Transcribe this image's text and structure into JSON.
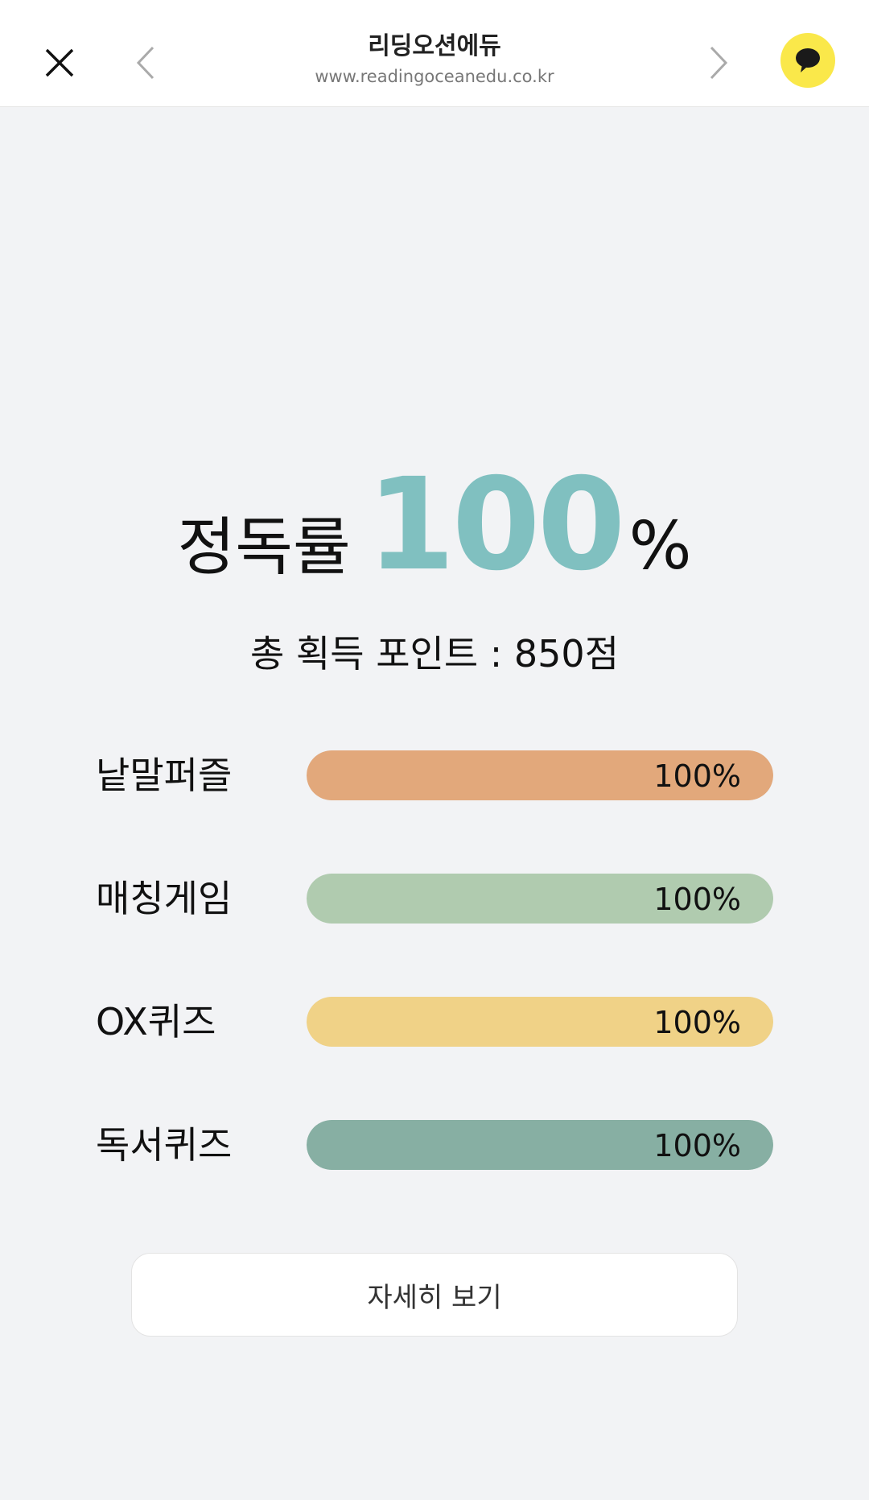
{
  "header": {
    "title": "리딩오션에듀",
    "url": "www.readingoceanedu.co.kr",
    "icons": [
      "close-icon",
      "chevron-left-icon",
      "chevron-right-icon",
      "kakao-chat-icon"
    ]
  },
  "summary": {
    "label": "정독률",
    "value": "100",
    "unit": "%",
    "points_text": "총 획득 포인트 : 850점",
    "accent_color": "#80c0c0"
  },
  "categories": [
    {
      "name": "낱말퍼즐",
      "value_text": "100%",
      "percent": 100,
      "color": "#e2a87b"
    },
    {
      "name": "매칭게임",
      "value_text": "100%",
      "percent": 100,
      "color": "#b0cbaf"
    },
    {
      "name": "OX퀴즈",
      "value_text": "100%",
      "percent": 100,
      "color": "#f0d287"
    },
    {
      "name": "독서퀴즈",
      "value_text": "100%",
      "percent": 100,
      "color": "#87afa3"
    }
  ],
  "detail_button": "자세히 보기"
}
